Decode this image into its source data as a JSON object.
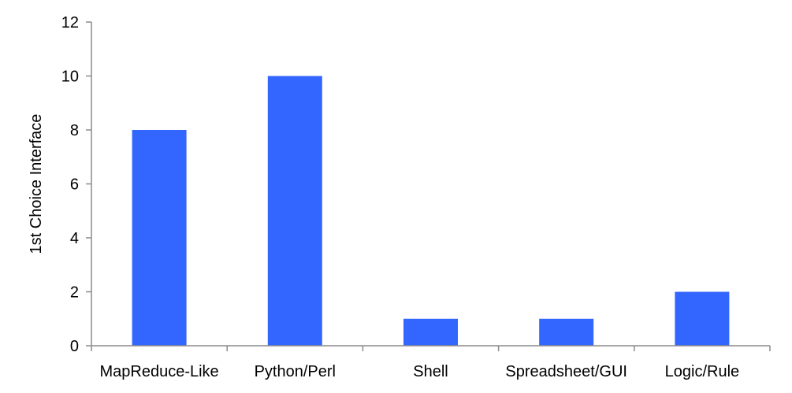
{
  "chart_data": {
    "type": "bar",
    "title": "",
    "xlabel": "",
    "ylabel": "1st Choice Interface",
    "categories": [
      "MapReduce-Like",
      "Python/Perl",
      "Shell",
      "Spreadsheet/GUI",
      "Logic/Rule"
    ],
    "values": [
      8,
      10,
      1,
      1,
      2
    ],
    "ylim": [
      0,
      12
    ],
    "yticks": [
      "0",
      "2",
      "4",
      "6",
      "8",
      "10",
      "12"
    ],
    "grid": false,
    "legend": "none",
    "bar_color": "#3366ff",
    "axis_color": "#8c8c8c"
  }
}
